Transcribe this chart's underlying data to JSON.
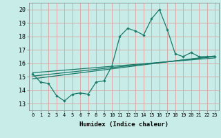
{
  "title": "",
  "xlabel": "Humidex (Indice chaleur)",
  "bg_color": "#c8ece8",
  "grid_color": "#dda0a0",
  "line_color": "#1a7a6a",
  "xlim": [
    -0.5,
    23.5
  ],
  "ylim": [
    12.5,
    20.5
  ],
  "xticks": [
    0,
    1,
    2,
    3,
    4,
    5,
    6,
    7,
    8,
    9,
    10,
    11,
    12,
    13,
    14,
    15,
    16,
    17,
    18,
    19,
    20,
    21,
    22,
    23
  ],
  "yticks": [
    13,
    14,
    15,
    16,
    17,
    18,
    19,
    20
  ],
  "line1_x": [
    0,
    1,
    2,
    3,
    4,
    5,
    6,
    7,
    8,
    9,
    10,
    11,
    12,
    13,
    14,
    15,
    16,
    17,
    18,
    19,
    20,
    21,
    22,
    23
  ],
  "line1_y": [
    15.2,
    14.6,
    14.5,
    13.6,
    13.2,
    13.7,
    13.8,
    13.7,
    14.6,
    14.7,
    15.8,
    18.0,
    18.6,
    18.4,
    18.1,
    19.3,
    20.0,
    18.5,
    16.7,
    16.5,
    16.8,
    16.5,
    16.5,
    16.5
  ],
  "line2_x": [
    0,
    23
  ],
  "line2_y": [
    15.05,
    16.5
  ],
  "line3_x": [
    0,
    23
  ],
  "line3_y": [
    15.3,
    16.4
  ],
  "line4_x": [
    0,
    23
  ],
  "line4_y": [
    14.85,
    16.55
  ]
}
